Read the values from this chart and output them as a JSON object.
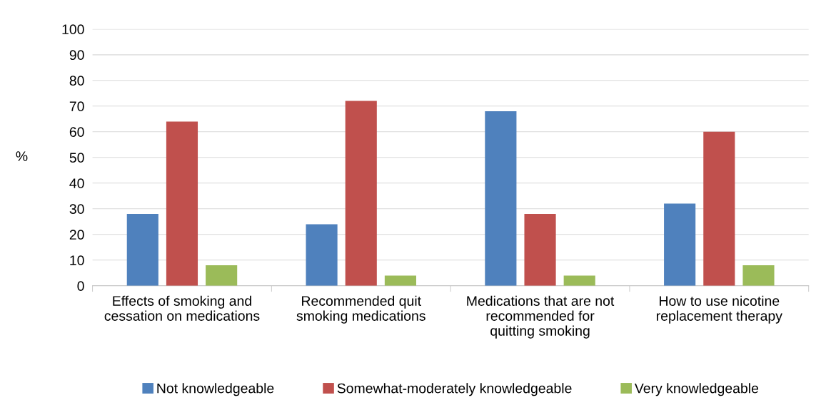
{
  "chart_data": {
    "type": "bar",
    "categories": [
      "Effects of smoking and\ncessation on medications",
      "Recommended quit\nsmoking medications",
      "Medications that are not\nrecommended for\nquitting smoking",
      "How to use nicotine\nreplacement therapy"
    ],
    "series": [
      {
        "name": "Not knowledgeable",
        "color": "#4f81bd",
        "values": [
          28,
          24,
          68,
          32
        ]
      },
      {
        "name": "Somewhat-moderately knowledgeable",
        "color": "#c0504d",
        "values": [
          64,
          72,
          28,
          60
        ]
      },
      {
        "name": "Very knowledgeable",
        "color": "#9bbb59",
        "values": [
          8,
          4,
          4,
          8
        ]
      }
    ],
    "ylabel": "%",
    "ylim": [
      0,
      100
    ],
    "yticks": [
      0,
      10,
      20,
      30,
      40,
      50,
      60,
      70,
      80,
      90,
      100
    ],
    "grid": "y",
    "legend": "bottom"
  }
}
